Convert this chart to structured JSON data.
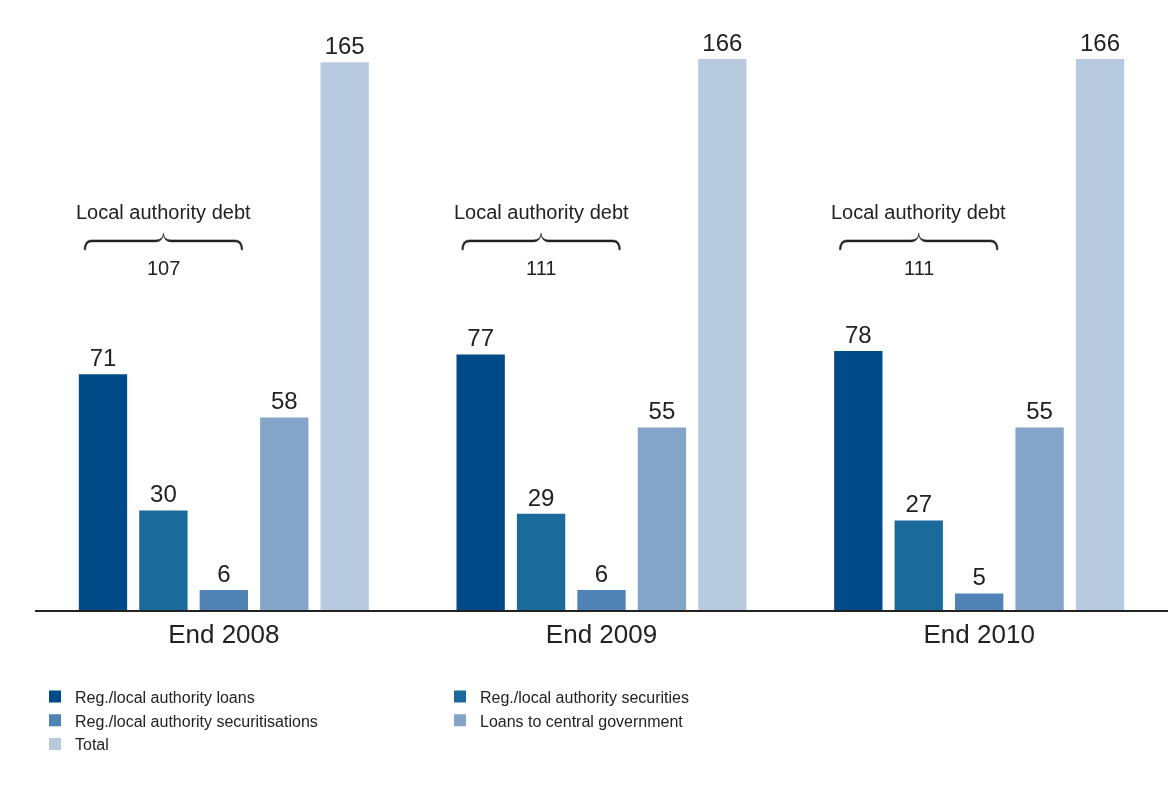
{
  "chart_data": {
    "type": "bar",
    "categories": [
      "End 2008",
      "End 2009",
      "End 2010"
    ],
    "series": [
      {
        "name": "Reg./local authority loans",
        "color": "#004b87",
        "values": [
          71,
          77,
          78
        ]
      },
      {
        "name": "Reg./local authority securities",
        "color": "#1b6a9c",
        "values": [
          30,
          29,
          27
        ]
      },
      {
        "name": "Reg./local authority securitisations",
        "color": "#4f82b5",
        "values": [
          6,
          6,
          5
        ]
      },
      {
        "name": "Loans to central government",
        "color": "#84a5c9",
        "values": [
          58,
          55,
          55
        ]
      },
      {
        "name": "Total",
        "color": "#b8cae0",
        "values": [
          165,
          166,
          166
        ]
      }
    ],
    "data_labels": true,
    "legend": "bottom",
    "annotations": [
      "Local authority debt",
      "107",
      "Local authority debt",
      "111",
      "Local authority debt",
      "111"
    ]
  }
}
